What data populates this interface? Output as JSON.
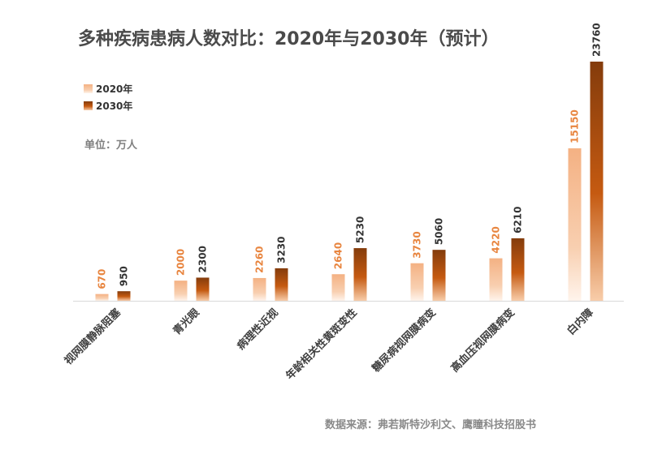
{
  "chart_data": {
    "type": "bar",
    "title": "多种疾病患病人数对比：2020年与2030年（预计）",
    "unit": "单位：万人",
    "source": "数据来源：弗若斯特沙利文、鹰瞳科技招股书",
    "categories": [
      "视网膜静脉阻塞",
      "青光眼",
      "病理性近视",
      "年龄相关性黄斑变性",
      "糖尿病视网膜病变",
      "高血压视网膜病变",
      "白内障"
    ],
    "series": [
      {
        "name": "2020年",
        "values": [
          670,
          2000,
          2260,
          2640,
          3730,
          4220,
          15150
        ],
        "color": "#f4b183"
      },
      {
        "name": "2030年",
        "values": [
          950,
          2300,
          3230,
          5230,
          5060,
          6210,
          23760
        ],
        "color": "#843c0c"
      }
    ],
    "ylim": [
      0,
      23760
    ],
    "grid": false,
    "legend_position": "top-left"
  }
}
